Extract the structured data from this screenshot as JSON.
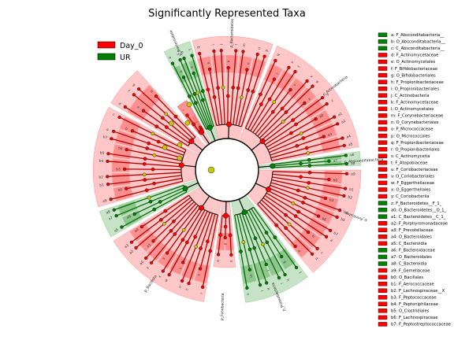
{
  "chart_data": {
    "type": "cladogram",
    "title": "Significantly Represented Taxa",
    "legend": {
      "placement": "top-left",
      "items": [
        {
          "name": "Day_0",
          "color": "#ff0000"
        },
        {
          "name": "UR",
          "color": "#008000"
        }
      ]
    },
    "colors": {
      "Day_0": "#ff0000",
      "UR": "#008000",
      "neutral": "#c8c800",
      "edge": "#000000"
    },
    "taxa_list": [
      {
        "id": "a",
        "label": "a: F_Absconditabacteria__",
        "group": "UR"
      },
      {
        "id": "b",
        "label": "b: O_Absconditabacteria__",
        "group": "UR"
      },
      {
        "id": "c",
        "label": "c: C_Absconditabacteria__",
        "group": "UR"
      },
      {
        "id": "d",
        "label": "d: F_Actinomycetaceae",
        "group": "Day_0"
      },
      {
        "id": "e",
        "label": "e: O_Actinomycetales",
        "group": "Day_0"
      },
      {
        "id": "f",
        "label": "f: F_Bifidobacteriaceae",
        "group": "Day_0"
      },
      {
        "id": "g",
        "label": "g: O_Bifidobacteriales",
        "group": "Day_0"
      },
      {
        "id": "h",
        "label": "h: F_Propionibacteriaceae",
        "group": "Day_0"
      },
      {
        "id": "i",
        "label": "i: O_Propionibacteriales",
        "group": "Day_0"
      },
      {
        "id": "j",
        "label": "j: C_Actinobacteria",
        "group": "Day_0"
      },
      {
        "id": "k",
        "label": "k: F_Actinomycetaceae",
        "group": "Day_0"
      },
      {
        "id": "l",
        "label": "l: O_Actinomycetales",
        "group": "Day_0"
      },
      {
        "id": "m",
        "label": "m: F_Corynebacteriaceae",
        "group": "Day_0"
      },
      {
        "id": "n",
        "label": "n: O_Corynebacteriales",
        "group": "Day_0"
      },
      {
        "id": "o",
        "label": "o: F_Micrococcaceae",
        "group": "Day_0"
      },
      {
        "id": "p",
        "label": "p: O_Micrococcales",
        "group": "Day_0"
      },
      {
        "id": "q",
        "label": "q: F_Propionibacteriaceae",
        "group": "Day_0"
      },
      {
        "id": "r",
        "label": "r: O_Propionibacteriales",
        "group": "Day_0"
      },
      {
        "id": "s",
        "label": "s: C_Actinomycetia",
        "group": "Day_0"
      },
      {
        "id": "t",
        "label": "t: F_Atopobiaceae",
        "group": "Day_0"
      },
      {
        "id": "u",
        "label": "u: F_Coriobacteriaceae",
        "group": "Day_0"
      },
      {
        "id": "v",
        "label": "v: O_Coriobacteriales",
        "group": "Day_0"
      },
      {
        "id": "w",
        "label": "w: F_Eggerthellaceae",
        "group": "Day_0"
      },
      {
        "id": "x",
        "label": "x: O_Eggerthellales",
        "group": "Day_0"
      },
      {
        "id": "y",
        "label": "y: C_Coriobacteriia",
        "group": "Day_0"
      },
      {
        "id": "z",
        "label": "z: F_Bacteroidetes__F_1_",
        "group": "UR"
      },
      {
        "id": "a0",
        "label": "a0: O_Bacteroidetes__O_1_",
        "group": "UR"
      },
      {
        "id": "a1",
        "label": "a1: C_Bacteroidetes__C_1_",
        "group": "UR"
      },
      {
        "id": "a2",
        "label": "a2: F_Porphyromonadaceae",
        "group": "Day_0"
      },
      {
        "id": "a3",
        "label": "a3: F_Prevotellaceae",
        "group": "Day_0"
      },
      {
        "id": "a4",
        "label": "a4: O_Bacteroidales",
        "group": "Day_0"
      },
      {
        "id": "a5",
        "label": "a5: C_Bacteroidia",
        "group": "Day_0"
      },
      {
        "id": "a6",
        "label": "a6: F_Bacteroidaceae",
        "group": "UR"
      },
      {
        "id": "a7",
        "label": "a7: O_Bacteroidales",
        "group": "UR"
      },
      {
        "id": "a8",
        "label": "a8: C_Bacteroidia",
        "group": "UR"
      },
      {
        "id": "a9",
        "label": "a9: F_Gemellaceae",
        "group": "Day_0"
      },
      {
        "id": "b0",
        "label": "b0: O_Bacillales",
        "group": "Day_0"
      },
      {
        "id": "b1",
        "label": "b1: F_Aerococcaceae",
        "group": "Day_0"
      },
      {
        "id": "b2",
        "label": "b2: F_Lachnospiraceae__X",
        "group": "Day_0"
      },
      {
        "id": "b3",
        "label": "b3: F_Peptococcaceae",
        "group": "Day_0"
      },
      {
        "id": "b4",
        "label": "b4: F_Peptoniphilaceae",
        "group": "Day_0"
      },
      {
        "id": "b5",
        "label": "b5: O_Clostridiales",
        "group": "Day_0"
      },
      {
        "id": "b6",
        "label": "b6: F_Lachnospiraceae",
        "group": "Day_0"
      },
      {
        "id": "b7",
        "label": "b7: F_Peptostreptococcaceae",
        "group": "Day_0"
      }
    ],
    "phylum_labels": [
      {
        "text": "p_Bacteroidota",
        "group": "UR"
      },
      {
        "text": "p_Bacteroidetes",
        "group": "Day_0"
      },
      {
        "text": "p_Actinobacteria",
        "group": "Day_0"
      },
      {
        "text": "p_Absconditabacteria",
        "group": "UR"
      },
      {
        "text": "p_Firmicutes",
        "group": "Day_0"
      },
      {
        "text": "p_Proteobacteria",
        "group": "UR"
      },
      {
        "text": "p_Fusobacteria",
        "group": "Day_0"
      },
      {
        "text": "p_Bacillota",
        "group": "Day_0"
      }
    ]
  }
}
